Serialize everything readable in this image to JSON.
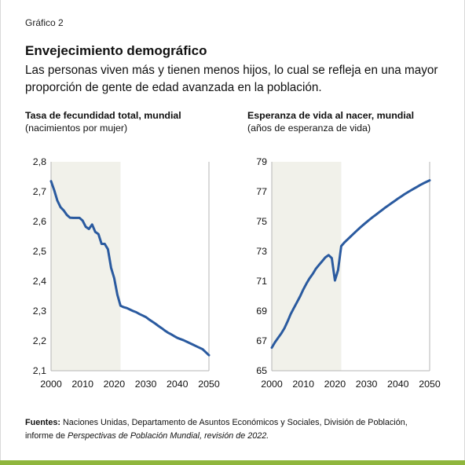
{
  "figure_label": "Gráfico 2",
  "title": "Envejecimiento demográfico",
  "subtitle": "Las personas viven más y tienen menos hijos, lo cual se refleja en una mayor proporción de gente de edad avanzada en la población.",
  "source": {
    "label": "Fuentes:",
    "text_1": "Naciones Unidas, Departamento de Asuntos Económicos y Sociales, División de Población,",
    "text_2a": "informe de ",
    "text_2b": "Perspectivas de Población Mundial, revisión de 2022.",
    "text_2c": ""
  },
  "colors": {
    "line": "#2a5a9f",
    "shade": "#f1f1ea",
    "axis": "#b5b5b5",
    "accent_bar": "#8fb63d"
  },
  "chart_data": [
    {
      "type": "line",
      "title": "Tasa de fecundidad total, mundial",
      "ylabel": "(nacimientos por mujer)",
      "xlim": [
        2000,
        2050
      ],
      "ylim": [
        2.1,
        2.8
      ],
      "x_ticks": [
        "2000",
        "2010",
        "2020",
        "2030",
        "2040",
        "2050"
      ],
      "y_ticks": [
        "2,1",
        "2,2",
        "2,3",
        "2,4",
        "2,5",
        "2,6",
        "2,7",
        "2,8"
      ],
      "shaded_range": [
        2000,
        2022
      ],
      "grid": false,
      "series": [
        {
          "x": [
            2000,
            2001,
            2002,
            2003,
            2004,
            2005,
            2006,
            2007,
            2008,
            2009,
            2010,
            2011,
            2012,
            2013,
            2014,
            2015,
            2016,
            2017,
            2018,
            2019,
            2020,
            2021,
            2022,
            2023,
            2024,
            2025,
            2026,
            2027,
            2028,
            2029,
            2030,
            2031,
            2032,
            2033,
            2034,
            2035,
            2036,
            2037,
            2038,
            2039,
            2040,
            2041,
            2042,
            2043,
            2044,
            2045,
            2046,
            2047,
            2048,
            2049,
            2050
          ],
          "values": [
            2.735,
            2.705,
            2.67,
            2.648,
            2.637,
            2.622,
            2.613,
            2.612,
            2.612,
            2.612,
            2.603,
            2.582,
            2.575,
            2.59,
            2.565,
            2.558,
            2.525,
            2.525,
            2.507,
            2.445,
            2.41,
            2.355,
            2.318,
            2.313,
            2.31,
            2.305,
            2.3,
            2.296,
            2.29,
            2.285,
            2.28,
            2.272,
            2.265,
            2.258,
            2.25,
            2.243,
            2.235,
            2.228,
            2.222,
            2.216,
            2.21,
            2.206,
            2.202,
            2.197,
            2.192,
            2.187,
            2.182,
            2.177,
            2.172,
            2.162,
            2.152
          ]
        }
      ]
    },
    {
      "type": "line",
      "title": "Esperanza de vida al nacer, mundial",
      "ylabel": "(años de esperanza de vida)",
      "xlim": [
        2000,
        2050
      ],
      "ylim": [
        65,
        79
      ],
      "x_ticks": [
        "2000",
        "2010",
        "2020",
        "2030",
        "2040",
        "2050"
      ],
      "y_ticks": [
        "65",
        "67",
        "69",
        "71",
        "73",
        "75",
        "77",
        "79"
      ],
      "shaded_range": [
        2000,
        2022
      ],
      "grid": false,
      "series": [
        {
          "x": [
            2000,
            2001,
            2002,
            2003,
            2004,
            2005,
            2006,
            2007,
            2008,
            2009,
            2010,
            2011,
            2012,
            2013,
            2014,
            2015,
            2016,
            2017,
            2018,
            2019,
            2020,
            2021,
            2022,
            2023,
            2024,
            2025,
            2026,
            2027,
            2028,
            2029,
            2030,
            2031,
            2032,
            2033,
            2034,
            2035,
            2036,
            2037,
            2038,
            2039,
            2040,
            2041,
            2042,
            2043,
            2044,
            2045,
            2046,
            2047,
            2048,
            2049,
            2050
          ],
          "values": [
            66.55,
            66.9,
            67.2,
            67.5,
            67.85,
            68.3,
            68.8,
            69.2,
            69.6,
            70.0,
            70.45,
            70.85,
            71.2,
            71.5,
            71.85,
            72.1,
            72.35,
            72.6,
            72.75,
            72.55,
            71.05,
            71.75,
            73.35,
            73.6,
            73.8,
            74.0,
            74.2,
            74.4,
            74.6,
            74.78,
            74.96,
            75.13,
            75.3,
            75.46,
            75.62,
            75.78,
            75.94,
            76.09,
            76.24,
            76.39,
            76.54,
            76.68,
            76.82,
            76.95,
            77.08,
            77.2,
            77.32,
            77.44,
            77.56,
            77.66,
            77.76
          ]
        }
      ]
    }
  ]
}
